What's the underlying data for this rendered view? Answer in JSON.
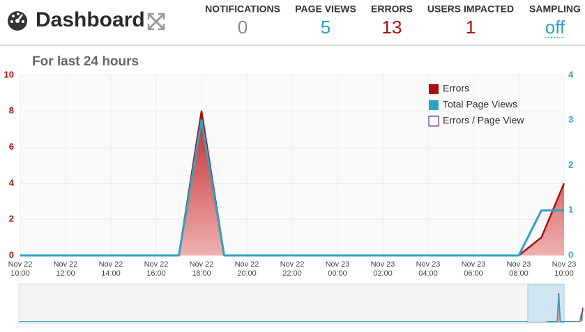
{
  "header": {
    "title": "Dashboard",
    "stats": [
      {
        "label": "NOTIFICATIONS",
        "value": 0,
        "color": "#8a8a8a"
      },
      {
        "label": "PAGE VIEWS",
        "value": 5,
        "color": "#2b9fc0"
      },
      {
        "label": "ERRORS",
        "value": 13,
        "color": "#b00e0e"
      },
      {
        "label": "USERS IMPACTED",
        "value": 1,
        "color": "#b00e0e"
      },
      {
        "label": "SAMPLING",
        "value": "off",
        "color": "#2b9fc0"
      }
    ]
  },
  "chart_data": {
    "type": "area-line",
    "subtitle": "For last 24 hours",
    "categories": [
      {
        "date": "Nov 22",
        "time": "10:00"
      },
      null,
      {
        "date": "Nov 22",
        "time": "12:00"
      },
      null,
      {
        "date": "Nov 22",
        "time": "14:00"
      },
      null,
      {
        "date": "Nov 22",
        "time": "16:00"
      },
      null,
      {
        "date": "Nov 22",
        "time": "18:00"
      },
      null,
      {
        "date": "Nov 22",
        "time": "20:00"
      },
      null,
      {
        "date": "Nov 22",
        "time": "22:00"
      },
      null,
      {
        "date": "Nov 23",
        "time": "00:00"
      },
      null,
      {
        "date": "Nov 23",
        "time": "02:00"
      },
      null,
      {
        "date": "Nov 23",
        "time": "04:00"
      },
      null,
      {
        "date": "Nov 23",
        "time": "06:00"
      },
      null,
      {
        "date": "Nov 23",
        "time": "08:00"
      },
      null,
      {
        "date": "Nov 23",
        "time": "10:00"
      }
    ],
    "series": [
      {
        "name": "Errors",
        "color": "#b00e0e",
        "axis": "y",
        "values": [
          0,
          0,
          0,
          0,
          0,
          0,
          0,
          0,
          8,
          0,
          0,
          0,
          0,
          0,
          0,
          0,
          0,
          0,
          0,
          0,
          0,
          0,
          0,
          1,
          4
        ]
      },
      {
        "name": "Total Page Views",
        "color": "#2fa3c2",
        "axis": "y2",
        "values": [
          0,
          0,
          0,
          0,
          0,
          0,
          0,
          0,
          3,
          0,
          0,
          0,
          0,
          0,
          0,
          0,
          0,
          0,
          0,
          0,
          0,
          0,
          0,
          1,
          1
        ]
      },
      {
        "name": "Errors / Page View",
        "color": "#7a5aa8",
        "visible": false
      }
    ],
    "ylim": [
      0,
      10
    ],
    "yticks": [
      0,
      2,
      4,
      6,
      8,
      10
    ],
    "y2lim": [
      0,
      4
    ],
    "y2ticks": [
      0,
      1,
      2,
      3,
      4
    ],
    "grid": true,
    "legend": "top-right"
  }
}
